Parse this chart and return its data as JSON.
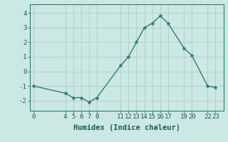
{
  "x": [
    0,
    4,
    5,
    6,
    7,
    8,
    11,
    12,
    13,
    14,
    15,
    16,
    17,
    19,
    20,
    22,
    23
  ],
  "y": [
    -1.0,
    -1.5,
    -1.8,
    -1.8,
    -2.1,
    -1.8,
    0.4,
    1.0,
    2.0,
    3.0,
    3.3,
    3.8,
    3.3,
    1.6,
    1.1,
    -1.0,
    -1.1
  ],
  "line_color": "#2e7d6e",
  "marker": "*",
  "marker_size": 3.5,
  "background_color": "#cce8e5",
  "grid_color": "#b0d0cc",
  "xlabel": "Humidex (Indice chaleur)",
  "xlim": [
    -0.5,
    24.0
  ],
  "ylim": [
    -2.7,
    4.6
  ],
  "yticks": [
    -2,
    -1,
    0,
    1,
    2,
    3,
    4
  ],
  "xticks": [
    0,
    4,
    5,
    6,
    7,
    8,
    11,
    12,
    13,
    14,
    15,
    16,
    17,
    19,
    20,
    22,
    23
  ],
  "xtick_labels": [
    "0",
    "4",
    "5",
    "6",
    "7",
    "8",
    "11",
    "12",
    "13",
    "14",
    "15",
    "16",
    "17",
    "19",
    "20",
    "22",
    "23"
  ],
  "tick_fontsize": 6.5,
  "label_fontsize": 7.5,
  "tick_color": "#1a5c50",
  "linewidth": 1.0
}
